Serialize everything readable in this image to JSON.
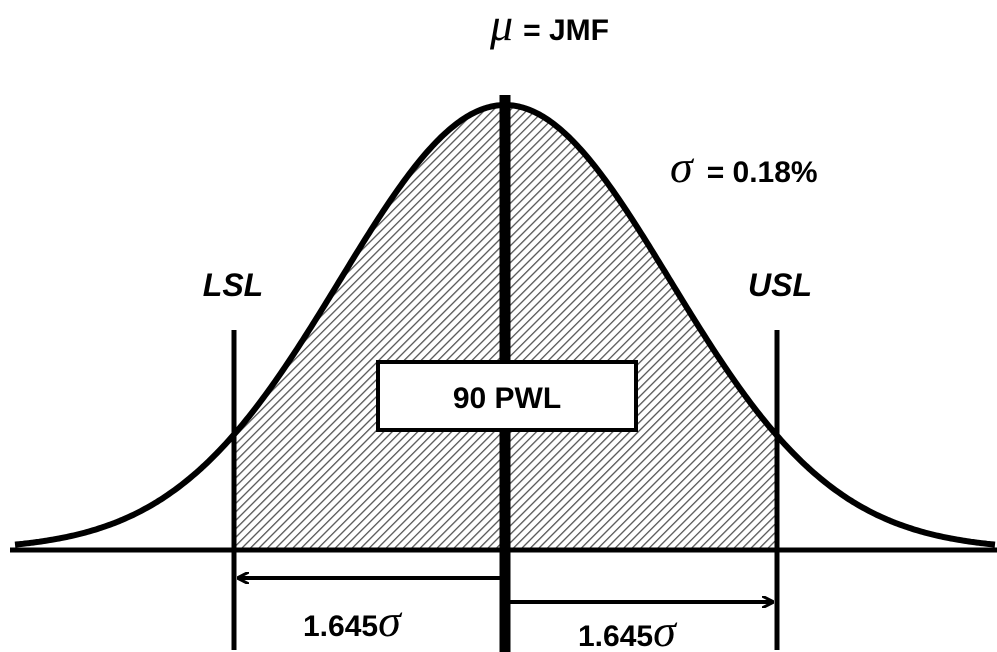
{
  "mean_label": {
    "symbol": "μ",
    "text": "= JMF"
  },
  "sigma_label": {
    "symbol": "σ",
    "text": "= 0.18%"
  },
  "lower_limit": "LSL",
  "upper_limit": "USL",
  "center_box": "90 PWL",
  "left_dimension": {
    "text": "1.645",
    "symbol": "σ"
  },
  "right_dimension": {
    "text": "1.645",
    "symbol": "σ"
  }
}
